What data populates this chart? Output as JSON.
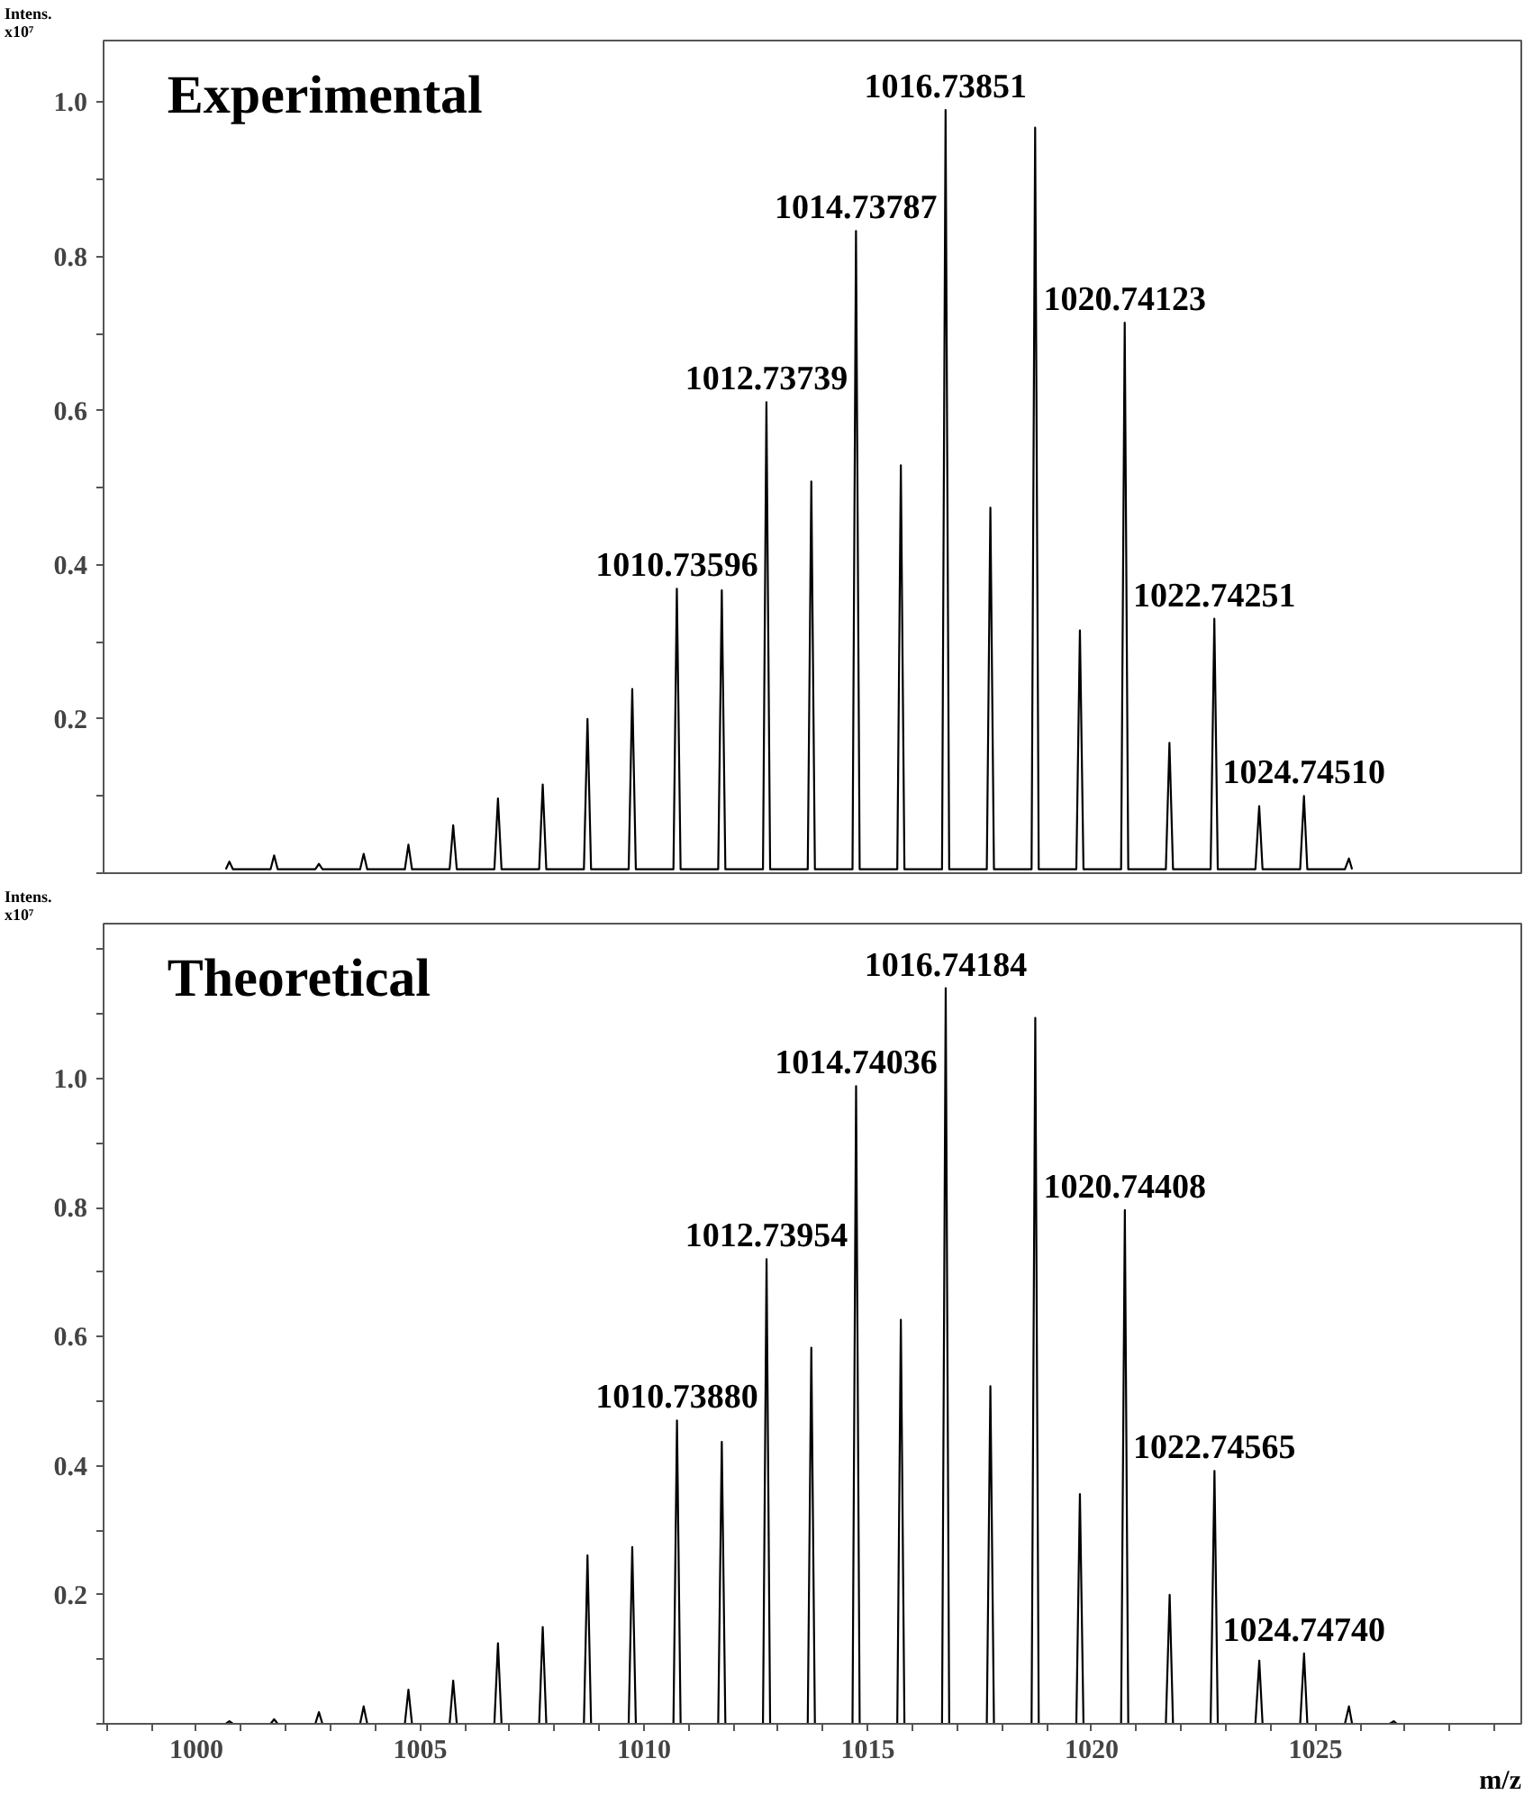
{
  "chart_data": [
    {
      "type": "line",
      "title": "Experimental",
      "ylabel": "Intens. x10⁷",
      "xlim": [
        997.93,
        1029.6
      ],
      "ylim": [
        0,
        1.08
      ],
      "yticks": [
        {
          "value": 0,
          "label": null
        },
        {
          "value": 0.1,
          "label": null
        },
        0.2,
        {
          "value": 0.3,
          "label": null
        },
        0.4,
        {
          "value": 0.5,
          "label": null
        },
        0.6,
        {
          "value": 0.7,
          "label": null
        },
        0.8,
        {
          "value": 0.9,
          "label": null
        },
        {
          "value": 1.0,
          "label": "1.0"
        }
      ],
      "tick_labels": "y",
      "grid": false,
      "marker": "none",
      "line_style": "solid",
      "series": [
        {
          "color": "#000000",
          "x": [
            1000.66,
            1000.74,
            1000.82,
            1001.66,
            1001.74,
            1001.82,
            1002.66,
            1002.74,
            1002.82,
            1003.66,
            1003.74,
            1003.82,
            1004.66,
            1004.74,
            1004.82,
            1005.66,
            1005.74,
            1005.82,
            1006.66,
            1006.74,
            1006.82,
            1007.66,
            1007.74,
            1007.82,
            1008.66,
            1008.74,
            1008.82,
            1009.66,
            1009.74,
            1009.82,
            1010.66,
            1010.736,
            1010.82,
            1011.66,
            1011.74,
            1011.82,
            1012.66,
            1012.737,
            1012.82,
            1013.66,
            1013.74,
            1013.82,
            1014.66,
            1014.738,
            1014.82,
            1015.66,
            1015.74,
            1015.82,
            1016.66,
            1016.739,
            1016.82,
            1017.66,
            1017.74,
            1017.82,
            1018.66,
            1018.74,
            1018.82,
            1019.66,
            1019.74,
            1019.82,
            1020.66,
            1020.741,
            1020.82,
            1021.66,
            1021.74,
            1021.82,
            1022.66,
            1022.743,
            1022.82,
            1023.66,
            1023.745,
            1023.82,
            1024.66,
            1024.745,
            1024.82,
            1025.66,
            1025.75,
            1025.82
          ],
          "values": [
            0.005,
            0.015,
            0.005,
            0.005,
            0.023,
            0.005,
            0.005,
            0.012,
            0.005,
            0.005,
            0.025,
            0.005,
            0.005,
            0.037,
            0.005,
            0.005,
            0.062,
            0.005,
            0.005,
            0.097,
            0.005,
            0.005,
            0.115,
            0.005,
            0.005,
            0.2,
            0.005,
            0.005,
            0.239,
            0.005,
            0.005,
            0.369,
            0.005,
            0.005,
            0.367,
            0.005,
            0.005,
            0.611,
            0.005,
            0.005,
            0.508,
            0.005,
            0.005,
            0.833,
            0.005,
            0.005,
            0.529,
            0.005,
            0.005,
            0.99,
            0.005,
            0.005,
            0.474,
            0.005,
            0.005,
            0.967,
            0.005,
            0.005,
            0.315,
            0.005,
            0.005,
            0.714,
            0.005,
            0.005,
            0.169,
            0.005,
            0.005,
            0.33,
            0.005,
            0.005,
            0.087,
            0.005,
            0.005,
            0.1,
            0.005,
            0.005,
            0.019,
            0.005
          ]
        }
      ],
      "annotations": [
        {
          "text": "1010.73596",
          "x": 1010.73596,
          "y": 0.369
        },
        {
          "text": "1012.73739",
          "x": 1012.73739,
          "y": 0.611
        },
        {
          "text": "1014.73787",
          "x": 1014.73787,
          "y": 0.833
        },
        {
          "text": "1016.73851",
          "x": 1016.73851,
          "y": 0.99
        },
        {
          "text": "1020.74123",
          "x": 1020.74123,
          "y": 0.714
        },
        {
          "text": "1022.74251",
          "x": 1022.74251,
          "y": 0.33
        },
        {
          "text": "1024.74510",
          "x": 1024.7451,
          "y": 0.1
        }
      ]
    },
    {
      "type": "line",
      "title": "Theoretical",
      "ylabel": "Intens. x10⁷",
      "xlabel": "m/z",
      "xlim": [
        997.93,
        1029.6
      ],
      "ylim": [
        0,
        1.24
      ],
      "xticks": [
        {
          "value": 998,
          "label": null
        },
        {
          "value": 999,
          "label": null
        },
        1000,
        {
          "value": 1001,
          "label": null
        },
        {
          "value": 1002,
          "label": null
        },
        {
          "value": 1003,
          "label": null
        },
        {
          "value": 1004,
          "label": null
        },
        1005,
        {
          "value": 1006,
          "label": null
        },
        {
          "value": 1007,
          "label": null
        },
        {
          "value": 1008,
          "label": null
        },
        {
          "value": 1009,
          "label": null
        },
        1010,
        {
          "value": 1011,
          "label": null
        },
        {
          "value": 1012,
          "label": null
        },
        {
          "value": 1013,
          "label": null
        },
        {
          "value": 1014,
          "label": null
        },
        1015,
        {
          "value": 1016,
          "label": null
        },
        {
          "value": 1017,
          "label": null
        },
        {
          "value": 1018,
          "label": null
        },
        {
          "value": 1019,
          "label": null
        },
        1020,
        {
          "value": 1021,
          "label": null
        },
        {
          "value": 1022,
          "label": null
        },
        {
          "value": 1023,
          "label": null
        },
        {
          "value": 1024,
          "label": null
        },
        1025,
        {
          "value": 1026,
          "label": null
        },
        {
          "value": 1027,
          "label": null
        },
        {
          "value": 1028,
          "label": null
        },
        {
          "value": 1029,
          "label": null
        }
      ],
      "yticks": [
        {
          "value": 0,
          "label": null
        },
        {
          "value": 0.1,
          "label": null
        },
        0.2,
        {
          "value": 0.3,
          "label": null
        },
        0.4,
        {
          "value": 0.5,
          "label": null
        },
        0.6,
        {
          "value": 0.7,
          "label": null
        },
        0.8,
        {
          "value": 0.9,
          "label": null
        },
        {
          "value": 1.0,
          "label": "1.0"
        },
        {
          "value": 1.1,
          "label": null
        },
        {
          "value": 1.2,
          "label": null
        }
      ],
      "grid": false,
      "marker": "none",
      "line_style": "solid",
      "series": [
        {
          "color": "#000000",
          "x": [
            1000.66,
            1000.74,
            1000.82,
            1001.66,
            1001.74,
            1001.82,
            1002.66,
            1002.74,
            1002.82,
            1003.66,
            1003.74,
            1003.82,
            1004.66,
            1004.74,
            1004.82,
            1005.66,
            1005.74,
            1005.82,
            1006.66,
            1006.74,
            1006.82,
            1007.66,
            1007.74,
            1007.82,
            1008.66,
            1008.74,
            1008.82,
            1009.66,
            1009.74,
            1009.82,
            1010.66,
            1010.739,
            1010.82,
            1011.66,
            1011.74,
            1011.82,
            1012.66,
            1012.74,
            1012.82,
            1013.66,
            1013.74,
            1013.82,
            1014.66,
            1014.74,
            1014.82,
            1015.66,
            1015.74,
            1015.82,
            1016.66,
            1016.742,
            1016.82,
            1017.66,
            1017.74,
            1017.82,
            1018.66,
            1018.743,
            1018.82,
            1019.66,
            1019.74,
            1019.82,
            1020.66,
            1020.744,
            1020.82,
            1021.66,
            1021.745,
            1021.82,
            1022.66,
            1022.746,
            1022.82,
            1023.66,
            1023.747,
            1023.82,
            1024.66,
            1024.747,
            1024.82,
            1025.66,
            1025.75,
            1025.82,
            1026.66,
            1026.75,
            1026.82
          ],
          "values": [
            0,
            0.004,
            0,
            0,
            0.007,
            0,
            0,
            0.018,
            0,
            0,
            0.027,
            0,
            0,
            0.053,
            0,
            0,
            0.067,
            0,
            0,
            0.125,
            0,
            0,
            0.15,
            0,
            0,
            0.261,
            0,
            0,
            0.274,
            0,
            0,
            0.47,
            0,
            0,
            0.437,
            0,
            0,
            0.72,
            0,
            0,
            0.583,
            0,
            0,
            0.988,
            0,
            0,
            0.626,
            0,
            0,
            1.14,
            0,
            0,
            0.523,
            0,
            0,
            1.094,
            0,
            0,
            0.356,
            0,
            0,
            0.796,
            0,
            0,
            0.2,
            0,
            0,
            0.392,
            0,
            0,
            0.098,
            0,
            0,
            0.109,
            0,
            0,
            0.027,
            0,
            0,
            0.004,
            0
          ]
        }
      ],
      "annotations": [
        {
          "text": "1010.73880",
          "x": 1010.7388,
          "y": 0.47
        },
        {
          "text": "1012.73954",
          "x": 1012.73954,
          "y": 0.72
        },
        {
          "text": "1014.74036",
          "x": 1014.74036,
          "y": 0.988
        },
        {
          "text": "1016.74184",
          "x": 1016.74184,
          "y": 1.14
        },
        {
          "text": "1020.74408",
          "x": 1020.74408,
          "y": 0.796
        },
        {
          "text": "1022.74565",
          "x": 1022.74565,
          "y": 0.392
        },
        {
          "text": "1024.74740",
          "x": 1024.7474,
          "y": 0.109
        }
      ]
    }
  ]
}
